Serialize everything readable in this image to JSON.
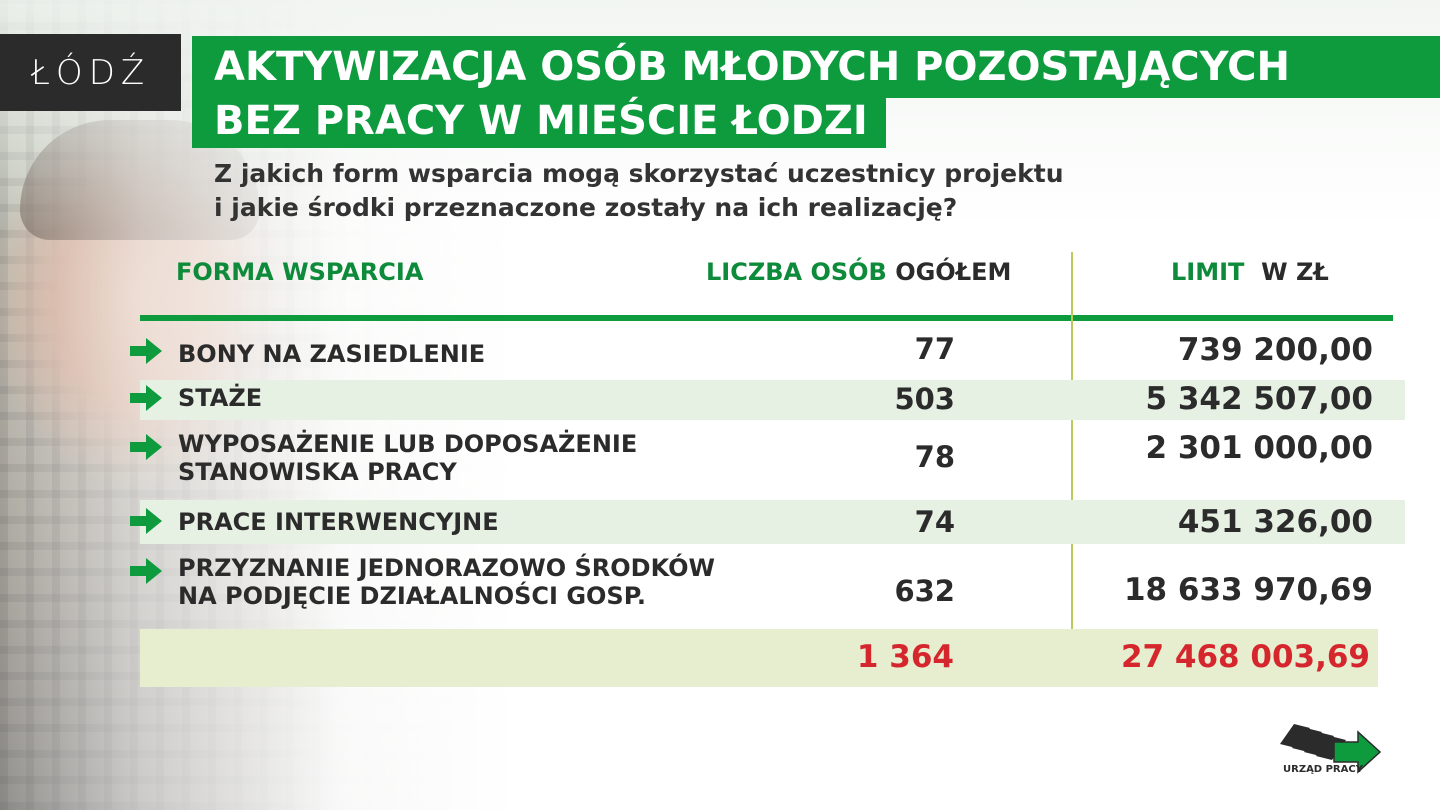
{
  "logo": {
    "text": "ŁÓDŹ"
  },
  "title": {
    "line1": "AKTYWIZACJA OSÓB MŁODYCH POZOSTAJĄCYCH",
    "line2": "BEZ PRACY W MIEŚCIE ŁODZI"
  },
  "subtitle": {
    "line1": "Z jakich form wsparcia mogą skorzystać uczestnicy projektu",
    "line2": "i jakie środki przeznaczone zostały na ich realizację?"
  },
  "table": {
    "headers": {
      "forma": "FORMA WSPARCIA",
      "liczba_green": "LICZBA OSÓB",
      "liczba_dark": "OGÓŁEM",
      "limit_green": "LIMIT",
      "limit_dark": "W ZŁ"
    },
    "rows": [
      {
        "label_line1": "BONY NA ZASIEDLENIE",
        "label_line2": "",
        "count": "77",
        "limit": "739 200,00"
      },
      {
        "label_line1": "STAŻE",
        "label_line2": "",
        "count": "503",
        "limit": "5 342 507,00"
      },
      {
        "label_line1": "WYPOSAŻENIE LUB DOPOSAŻENIE",
        "label_line2": "STANOWISKA PRACY",
        "count": "78",
        "limit": "2 301 000,00"
      },
      {
        "label_line1": "PRACE INTERWENCYJNE",
        "label_line2": "",
        "count": "74",
        "limit": "451 326,00"
      },
      {
        "label_line1": "PRZYZNANIE JEDNORAZOWO ŚRODKÓW",
        "label_line2": "NA PODJĘCIE DZIAŁALNOŚCI GOSP.",
        "count": "632",
        "limit": "18 633 970,69"
      }
    ],
    "total": {
      "count": "1 364",
      "limit": "27 468 003,69"
    }
  },
  "footer_logo": {
    "caption": "URZĄD PRACY"
  },
  "colors": {
    "brand_green": "#0d9b3e",
    "header_green": "#0d8a3a",
    "total_red": "#d6262d",
    "row_shade": "#e6f0e3",
    "total_shade": "#e7edcf"
  },
  "icons": {
    "row_marker": "arrow-right-icon"
  }
}
